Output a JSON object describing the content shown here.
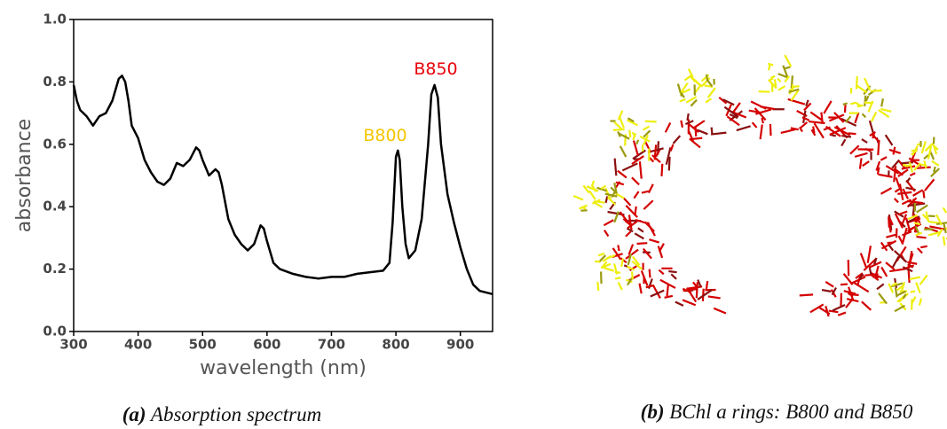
{
  "chart_data": {
    "type": "line",
    "xlabel": "wavelength (nm)",
    "ylabel": "absorbance",
    "x": [
      300,
      305,
      310,
      320,
      330,
      340,
      350,
      360,
      370,
      375,
      380,
      385,
      390,
      400,
      410,
      420,
      430,
      440,
      450,
      460,
      470,
      480,
      490,
      495,
      500,
      510,
      520,
      525,
      530,
      540,
      550,
      560,
      570,
      580,
      590,
      595,
      600,
      610,
      620,
      640,
      660,
      680,
      700,
      720,
      740,
      760,
      780,
      790,
      795,
      800,
      803,
      806,
      810,
      815,
      820,
      830,
      840,
      850,
      855,
      860,
      865,
      870,
      880,
      890,
      900,
      910,
      920,
      930,
      950
    ],
    "values": [
      0.79,
      0.74,
      0.71,
      0.69,
      0.66,
      0.69,
      0.7,
      0.74,
      0.81,
      0.82,
      0.8,
      0.74,
      0.66,
      0.62,
      0.55,
      0.51,
      0.48,
      0.47,
      0.49,
      0.54,
      0.53,
      0.55,
      0.59,
      0.58,
      0.55,
      0.5,
      0.52,
      0.51,
      0.47,
      0.36,
      0.31,
      0.28,
      0.26,
      0.28,
      0.34,
      0.33,
      0.29,
      0.22,
      0.2,
      0.185,
      0.175,
      0.17,
      0.175,
      0.175,
      0.185,
      0.19,
      0.195,
      0.22,
      0.35,
      0.56,
      0.58,
      0.55,
      0.4,
      0.28,
      0.235,
      0.26,
      0.36,
      0.6,
      0.76,
      0.79,
      0.75,
      0.6,
      0.44,
      0.35,
      0.27,
      0.2,
      0.15,
      0.13,
      0.12
    ],
    "color": "#000000",
    "xlim": [
      300,
      950
    ],
    "ylim": [
      0,
      1
    ],
    "xticks": [
      300,
      400,
      500,
      600,
      700,
      800,
      900
    ],
    "yticks": [
      {
        "value": 0,
        "label": "0.0"
      },
      0.2,
      0.4,
      0.6,
      0.8,
      {
        "value": 1,
        "label": "1.0"
      }
    ],
    "annotations": [
      {
        "text": "B800",
        "color": "#f5c400"
      },
      {
        "text": "B850",
        "color": "#e8000b"
      }
    ]
  },
  "captions": [
    {
      "label": "(a)",
      "text": "Absorption spectrum"
    },
    {
      "label": "(b)",
      "text": "BChl a rings: B800 and B850"
    }
  ]
}
